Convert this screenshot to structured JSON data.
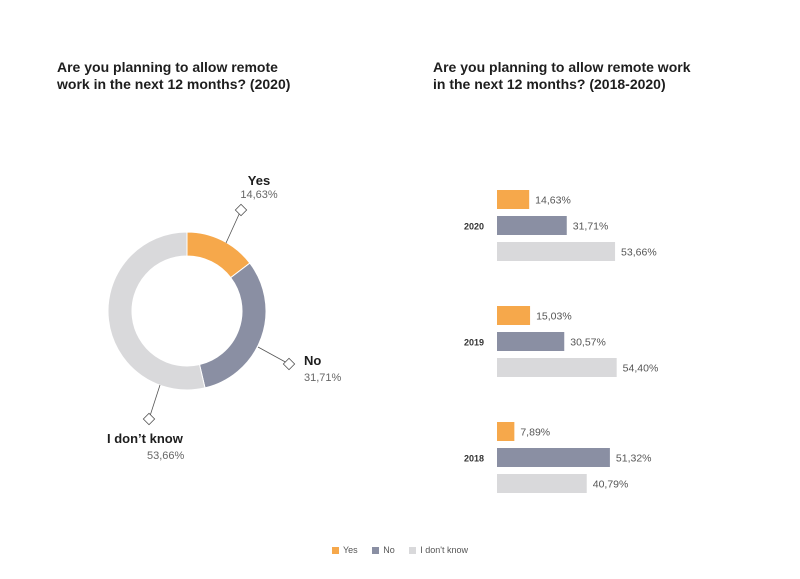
{
  "colors": {
    "yes": "#F6A84B",
    "no": "#8A8FA3",
    "dont_know": "#D9D9DB"
  },
  "chart_data": [
    {
      "type": "pie",
      "variant": "donut",
      "title": "Are you planning to allow remote work in the next 12 months? (2020)",
      "title_lines": [
        "Are you planning to allow remote",
        "work in the next 12 months? (2020)"
      ],
      "slices": [
        {
          "key": "yes",
          "label": "Yes",
          "value": 14.63,
          "value_label": "14,63%"
        },
        {
          "key": "no",
          "label": "No",
          "value": 31.71,
          "value_label": "31,71%"
        },
        {
          "key": "dont_know",
          "label": "I don’t know",
          "value": 53.66,
          "value_label": "53,66%"
        }
      ]
    },
    {
      "type": "bar",
      "orientation": "horizontal",
      "title": "Are you planning to allow remote work in the next 12 months? (2018-2020)",
      "title_lines": [
        "Are you planning to allow remote work",
        "in the next 12 months? (2018-2020)"
      ],
      "categories": [
        "2020",
        "2019",
        "2018"
      ],
      "series": [
        {
          "key": "yes",
          "name": "Yes",
          "values": [
            14.63,
            15.03,
            7.89
          ],
          "labels": [
            "14,63%",
            "15,03%",
            "7,89%"
          ]
        },
        {
          "key": "no",
          "name": "No",
          "values": [
            31.71,
            30.57,
            51.32
          ],
          "labels": [
            "31,71%",
            "30,57%",
            "51,32%"
          ]
        },
        {
          "key": "dont_know",
          "name": "I don’t know",
          "values": [
            53.66,
            54.4,
            40.79
          ],
          "labels": [
            "53,66%",
            "54,40%",
            "40,79%"
          ]
        }
      ]
    }
  ],
  "legend": [
    {
      "key": "yes",
      "label": "Yes"
    },
    {
      "key": "no",
      "label": "No"
    },
    {
      "key": "dont_know",
      "label": "I don't know"
    }
  ]
}
